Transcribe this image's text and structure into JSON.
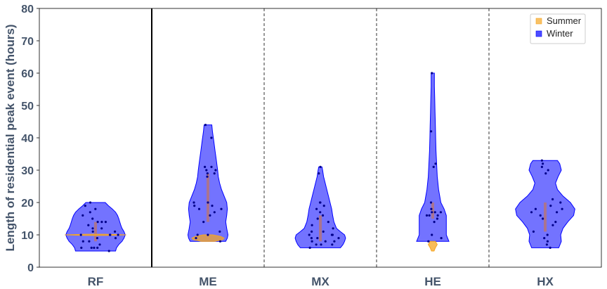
{
  "chart_data": {
    "type": "violin",
    "ylabel": "Length of residential peak event (hours)",
    "ylim": [
      0,
      80
    ],
    "yticks": [
      0,
      10,
      20,
      30,
      40,
      50,
      60,
      70,
      80
    ],
    "categories": [
      "RF",
      "ME",
      "MX",
      "HE",
      "HX"
    ],
    "legend": {
      "position": "top-right",
      "entries": [
        "Summer",
        "Winter"
      ]
    },
    "colors": {
      "Summer": "#f5a623",
      "Winter": "#0000ff",
      "inner": "#b87474"
    },
    "separators": [
      {
        "after": "RF",
        "style": "solid"
      },
      {
        "after": "ME",
        "style": "dashed"
      },
      {
        "after": "MX",
        "style": "dashed"
      },
      {
        "after": "HE",
        "style": "dashed"
      }
    ],
    "series": [
      {
        "name": "Winter",
        "violins": [
          {
            "category": "RF",
            "min": 5,
            "max": 20,
            "profile": [
              [
                5,
                0.62
              ],
              [
                6,
                0.65
              ],
              [
                7,
                0.72
              ],
              [
                8,
                0.82
              ],
              [
                9,
                0.88
              ],
              [
                10,
                0.92
              ],
              [
                11,
                0.88
              ],
              [
                12,
                0.82
              ],
              [
                13,
                0.78
              ],
              [
                14,
                0.75
              ],
              [
                15,
                0.72
              ],
              [
                16,
                0.68
              ],
              [
                17,
                0.62
              ],
              [
                18,
                0.52
              ],
              [
                19,
                0.4
              ],
              [
                20,
                0.3
              ]
            ],
            "points": [
              5,
              6,
              6,
              6,
              6,
              7,
              8,
              8,
              9,
              9,
              10,
              10,
              10,
              10,
              11,
              11,
              12,
              12,
              13,
              14,
              14,
              14,
              15,
              16,
              17,
              18,
              19,
              20
            ]
          },
          {
            "category": "ME",
            "min": 8,
            "max": 44,
            "profile": [
              [
                8,
                0.55
              ],
              [
                9,
                0.6
              ],
              [
                10,
                0.62
              ],
              [
                12,
                0.58
              ],
              [
                14,
                0.55
              ],
              [
                16,
                0.58
              ],
              [
                18,
                0.6
              ],
              [
                20,
                0.58
              ],
              [
                22,
                0.5
              ],
              [
                24,
                0.42
              ],
              [
                26,
                0.36
              ],
              [
                28,
                0.32
              ],
              [
                30,
                0.3
              ],
              [
                33,
                0.26
              ],
              [
                36,
                0.22
              ],
              [
                39,
                0.18
              ],
              [
                42,
                0.14
              ],
              [
                44,
                0.12
              ]
            ],
            "points": [
              8,
              9,
              10,
              10,
              11,
              14,
              16,
              17,
              18,
              18,
              19,
              19,
              20,
              20,
              28,
              29,
              29,
              30,
              30,
              31,
              31,
              40,
              44
            ]
          },
          {
            "category": "MX",
            "min": 6,
            "max": 31,
            "profile": [
              [
                6,
                0.62
              ],
              [
                7,
                0.7
              ],
              [
                8,
                0.75
              ],
              [
                9,
                0.78
              ],
              [
                10,
                0.75
              ],
              [
                11,
                0.62
              ],
              [
                12,
                0.5
              ],
              [
                14,
                0.42
              ],
              [
                16,
                0.38
              ],
              [
                18,
                0.35
              ],
              [
                20,
                0.3
              ],
              [
                22,
                0.25
              ],
              [
                24,
                0.2
              ],
              [
                26,
                0.15
              ],
              [
                28,
                0.1
              ],
              [
                30,
                0.07
              ],
              [
                31,
                0.05
              ]
            ],
            "points": [
              6,
              7,
              7,
              7,
              8,
              8,
              8,
              9,
              9,
              9,
              10,
              10,
              10,
              11,
              11,
              12,
              13,
              14,
              15,
              16,
              17,
              18,
              19,
              20,
              20,
              29,
              31
            ]
          },
          {
            "category": "HE",
            "min": 8,
            "max": 60,
            "profile": [
              [
                8,
                0.5
              ],
              [
                10,
                0.42
              ],
              [
                12,
                0.42
              ],
              [
                14,
                0.42
              ],
              [
                16,
                0.42
              ],
              [
                18,
                0.35
              ],
              [
                20,
                0.25
              ],
              [
                24,
                0.18
              ],
              [
                28,
                0.14
              ],
              [
                32,
                0.12
              ],
              [
                36,
                0.1
              ],
              [
                40,
                0.09
              ],
              [
                44,
                0.08
              ],
              [
                48,
                0.07
              ],
              [
                52,
                0.06
              ],
              [
                56,
                0.05
              ],
              [
                60,
                0.05
              ]
            ],
            "points": [
              8,
              9,
              10,
              14,
              15,
              16,
              16,
              16,
              17,
              17,
              17,
              18,
              20,
              31,
              32,
              42,
              60
            ]
          },
          {
            "category": "HX",
            "min": 6,
            "max": 33,
            "profile": [
              [
                6,
                0.42
              ],
              [
                8,
                0.5
              ],
              [
                10,
                0.48
              ],
              [
                12,
                0.55
              ],
              [
                14,
                0.7
              ],
              [
                16,
                0.88
              ],
              [
                18,
                0.92
              ],
              [
                20,
                0.78
              ],
              [
                22,
                0.55
              ],
              [
                24,
                0.38
              ],
              [
                26,
                0.32
              ],
              [
                28,
                0.4
              ],
              [
                30,
                0.5
              ],
              [
                32,
                0.45
              ],
              [
                33,
                0.38
              ]
            ],
            "points": [
              6,
              7,
              8,
              9,
              10,
              11,
              13,
              14,
              15,
              16,
              17,
              17,
              18,
              18,
              19,
              20,
              21,
              29,
              30,
              31,
              32,
              33
            ]
          }
        ]
      },
      {
        "name": "Summer",
        "violins": [
          {
            "category": "RF",
            "min": 9.8,
            "max": 10.2,
            "profile": [
              [
                9.8,
                0.3
              ],
              [
                10,
                0.95
              ],
              [
                10.2,
                0.3
              ]
            ],
            "points": []
          },
          {
            "category": "ME",
            "min": 8,
            "max": 10,
            "profile": [
              [
                8,
                0.2
              ],
              [
                8.5,
                0.45
              ],
              [
                9,
                0.5
              ],
              [
                9.5,
                0.4
              ],
              [
                10,
                0.15
              ]
            ],
            "points": []
          },
          {
            "category": "HE",
            "min": 5,
            "max": 8,
            "profile": [
              [
                5,
                0.04
              ],
              [
                6,
                0.08
              ],
              [
                7,
                0.14
              ],
              [
                8,
                0.08
              ]
            ],
            "points": []
          }
        ]
      }
    ]
  }
}
